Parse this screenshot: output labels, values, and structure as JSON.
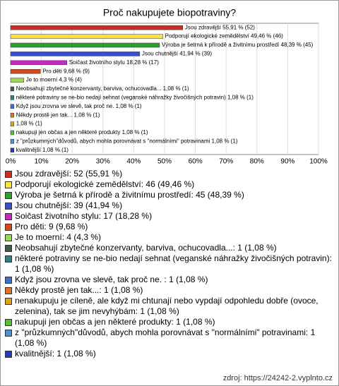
{
  "chart_data": {
    "type": "bar",
    "orientation": "horizontal",
    "title": "Proč nakupujete biopotraviny?",
    "categories": [
      "Jsou zdravější",
      "Podporují ekologické zemědělství",
      "Výroba je šetrná k přírodě a živitnímu prostředí",
      "Jsou chutnější",
      "Soičast životního stylu",
      "Pro děti",
      "Je to moerní",
      "Neobsahují zbytečné konzervanty, barviva, ochucovadla...",
      "některé potraviny se ne-bio nedají sehnat (veganské náhražky živočišných potravin)",
      "Když jsou zrovna ve slevě, tak proč ne.",
      "Někdy prostě jen tak...",
      null,
      "nakupuji jen občas a jen některé produkty",
      "z \"průzkumných\"důvodů, abych mohla porovnávat s \"normálními\" potravinami",
      "kvalitnější"
    ],
    "values": [
      55.91,
      49.46,
      48.39,
      41.94,
      18.28,
      9.68,
      4.3,
      1.08,
      1.08,
      1.08,
      1.08,
      1.08,
      1.08,
      1.08,
      1.08
    ],
    "value_labels": [
      "Jsou zdravější 55,91 % (52)",
      "Podporují ekologické zemědělství 49,46 % (46)",
      "Výroba je šetrná k přírodě a živitnímu prostředí 48,39 % (45)",
      "Jsou chutnější 41,94 % (39)",
      "Soičast životního stylu 18,28 % (17)",
      "Pro děti 9,68 % (9)",
      "Je to moerní 4,3 % (4)",
      "Neobsahují zbytečné konzervanty, barviva, ochucovadla... 1,08 % (1)",
      "některé potraviny se ne-bio nedají sehnat (veganské náhražky živočišných potravin) 1,08 % (1)",
      "Když jsou zrovna ve slevě, tak proč ne.  1,08 % (1)",
      "Někdy prostě jen tak... 1,08 % (1)",
      "1,08 % (1)",
      "nakupuji jen občas a jen některé produkty 1,08 % (1)",
      "z \"průzkumných\"důvodů, abych mohla porovnávat s \"normálními\" potravinami 1,08 % (1)",
      "kvalitnější 1,08 % (1)"
    ],
    "legend": [
      "Jsou zdravější: 52 (55,91 %)",
      "Podporují ekologické zemědělství: 46 (49,46 %)",
      "Výroba je šetrná k přírodě a živitnímu prostředí: 45 (48,39 %)",
      "Jsou chutnější: 39 (41,94 %)",
      "Soičast životního stylu: 17 (18,28 %)",
      "Pro děti: 9 (9,68 %)",
      "Je to moerní: 4 (4,3 %)",
      "Neobsahují zbytečné konzervanty, barviva, ochucovadla...: 1 (1,08 %)",
      "některé potraviny se ne-bio nedají sehnat (veganské náhražky živočišných potravin): 1 (1,08 %)",
      "Když jsou zrovna ve slevě, tak proč ne. : 1 (1,08 %)",
      "Někdy prostě jen tak...: 1 (1,08 %)",
      "nenakupuju je cíleně, ale když mi chtunají nebo vypdají odpohledu dobře (ovoce, zelenina), tak se jim nevyhýbám: 1 (1,08 %)",
      "nakupuji jen občas a jen některé produkty: 1 (1,08 %)",
      "z \"průzkumných\"důvodů, abych mohla porovnávat s \"normálními\" potravinami: 1 (1,08 %)",
      "kvalitnější: 1 (1,08 %)"
    ],
    "colors": [
      "#d42a1e",
      "#f7e43c",
      "#2e9e2e",
      "#3a4fc4",
      "#c42ac4",
      "#d9481a",
      "#9ad84e",
      "#3f5a4a",
      "#2f7f80",
      "#3f6fd0",
      "#e0702a",
      "#e0a020",
      "#5cba3a",
      "#4a90d0",
      "#2a3aa8"
    ],
    "xlim": [
      0,
      100
    ],
    "xticks": [
      {
        "value": 0,
        "label": "0%"
      },
      {
        "value": 10,
        "label": "10%"
      },
      {
        "value": 20,
        "label": "20%"
      },
      {
        "value": 30,
        "label": "30%"
      },
      {
        "value": 40,
        "label": "40%"
      },
      {
        "value": 50,
        "label": "50%"
      },
      {
        "value": 60,
        "label": "60%"
      },
      {
        "value": 70,
        "label": "70%"
      },
      {
        "value": 80,
        "label": "80%"
      },
      {
        "value": 90,
        "label": "90%"
      },
      {
        "value": 100,
        "label": "100%"
      }
    ],
    "grid": true,
    "source": "zdroj: https://24242-2.vyplnto.cz"
  }
}
